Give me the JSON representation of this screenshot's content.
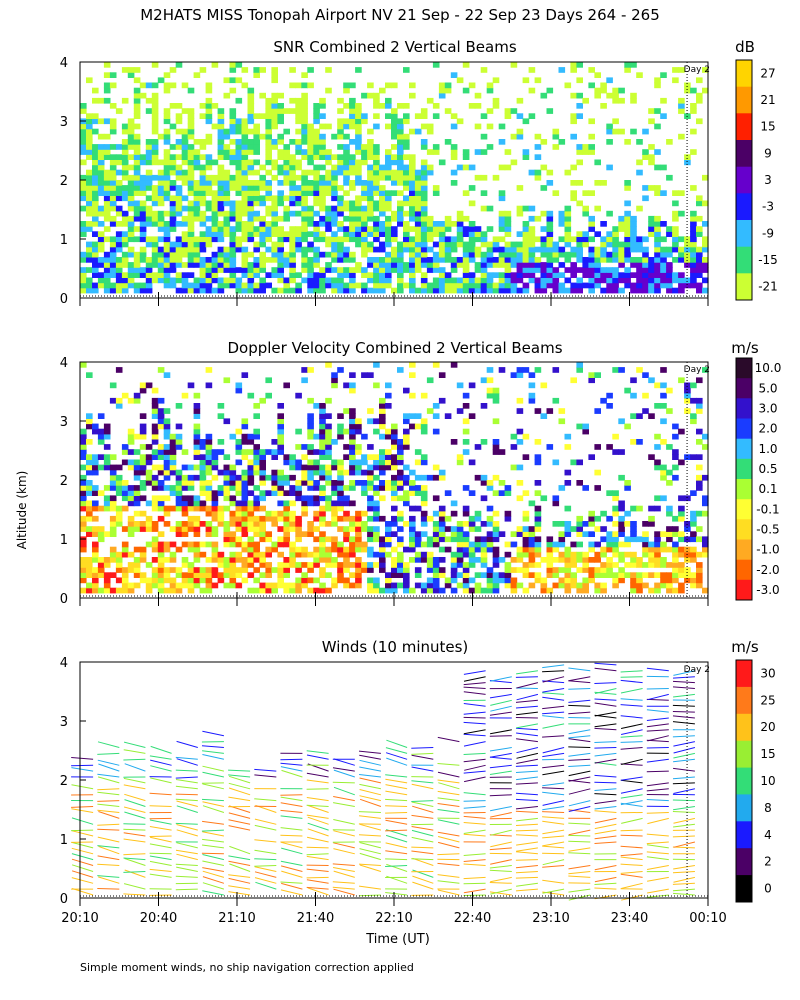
{
  "figure": {
    "title": "M2HATS MISS Tonopah Airport NV  21 Sep - 22 Sep 23 Days 264 - 265",
    "ylabel": "Altitude (km)",
    "xlabel": "Time (UT)",
    "footnote": "Simple moment winds, no ship navigation correction applied",
    "day_marker_label": "Day 2"
  },
  "chart_data": [
    {
      "type": "heatmap",
      "title": "SNR Combined 2 Vertical Beams",
      "colorbar_unit": "dB",
      "colorbar_labels": [
        "27",
        "21",
        "15",
        "9",
        "3",
        "-3",
        "-9",
        "-15",
        "-21"
      ],
      "colorbar_colors": [
        "#ffd400",
        "#ff9900",
        "#ff2000",
        "#4b0066",
        "#6600cc",
        "#1a1aff",
        "#33bbff",
        "#33dd77",
        "#ccff33"
      ],
      "x_range_minutes": [
        0,
        240
      ],
      "x_tick_labels": [
        "20:10",
        "20:40",
        "21:10",
        "21:40",
        "22:10",
        "22:40",
        "23:10",
        "23:40",
        "00:10"
      ],
      "y_range_km": [
        0,
        4
      ],
      "y_tick_labels": [
        "0",
        "1",
        "2",
        "3",
        "4"
      ],
      "day_marker_minute": 232
    },
    {
      "type": "heatmap",
      "title": "Doppler Velocity Combined 2 Vertical Beams",
      "colorbar_unit": "m/s",
      "colorbar_labels": [
        "10.0",
        "5.0",
        "3.0",
        "2.0",
        "1.0",
        "0.5",
        "0.1",
        "-0.1",
        "-0.5",
        "-1.0",
        "-2.0",
        "-3.0"
      ],
      "colorbar_colors": [
        "#2a0a2a",
        "#4b0066",
        "#3311cc",
        "#1a3cff",
        "#33bbff",
        "#33dd77",
        "#aaff33",
        "#ffff33",
        "#ffdd22",
        "#ffaa22",
        "#ff6600",
        "#ff1a1a"
      ],
      "x_range_minutes": [
        0,
        240
      ],
      "x_tick_labels": [
        "20:10",
        "20:40",
        "21:10",
        "21:40",
        "22:10",
        "22:40",
        "23:10",
        "23:40",
        "00:10"
      ],
      "y_range_km": [
        0,
        4
      ],
      "y_tick_labels": [
        "0",
        "1",
        "2",
        "3",
        "4"
      ],
      "day_marker_minute": 232
    },
    {
      "type": "scatter",
      "title": "Winds (10 minutes)",
      "colorbar_unit": "m/s",
      "colorbar_labels": [
        "30",
        "25",
        "20",
        "15",
        "10",
        "8",
        "4",
        "2",
        "0"
      ],
      "colorbar_colors": [
        "#ff1a1a",
        "#ff7a1a",
        "#ffc21a",
        "#99ee33",
        "#33dd77",
        "#22aaee",
        "#1a1aff",
        "#4b0066",
        "#000000"
      ],
      "x_range_minutes": [
        0,
        240
      ],
      "x_tick_labels": [
        "20:10",
        "20:40",
        "21:10",
        "21:40",
        "22:10",
        "22:40",
        "23:10",
        "23:40",
        "00:10"
      ],
      "y_range_km": [
        0,
        4
      ],
      "y_tick_labels": [
        "0",
        "1",
        "2",
        "3",
        "4"
      ],
      "day_marker_minute": 232
    }
  ]
}
